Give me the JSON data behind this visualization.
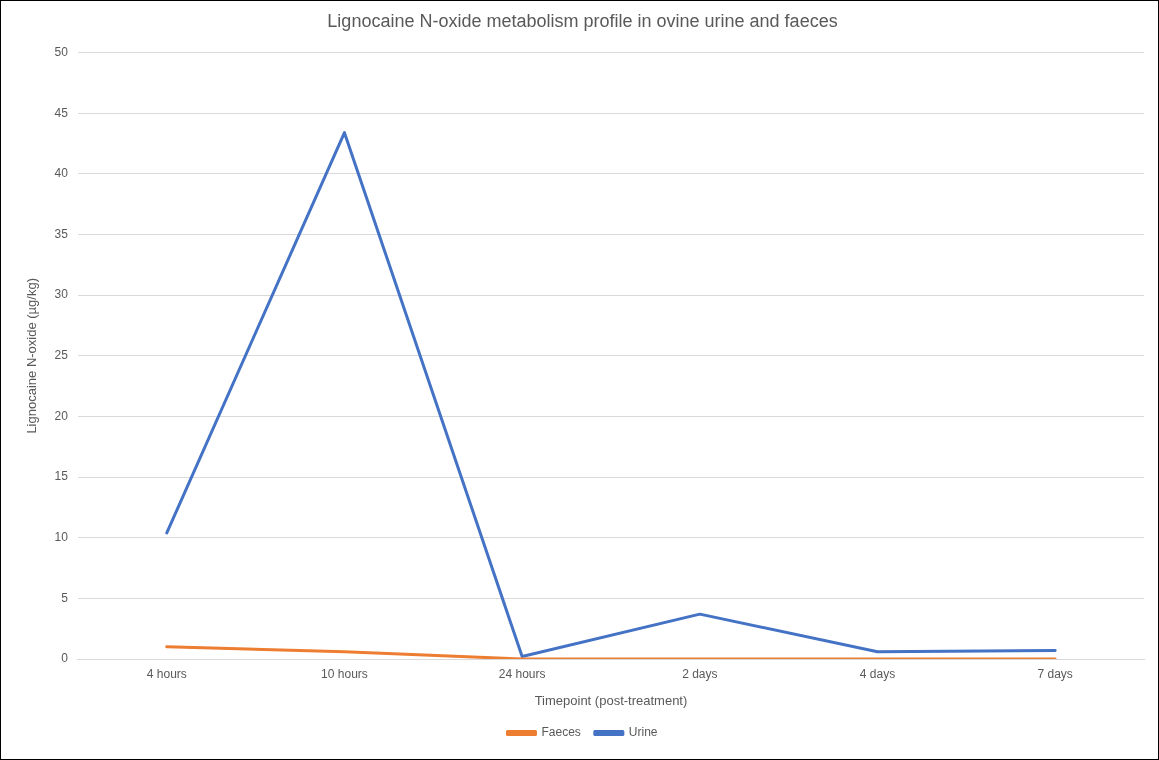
{
  "chart_data": {
    "type": "line",
    "title": "Lignocaine N-oxide metabolism profile in ovine urine and faeces",
    "xlabel": "Timepoint (post-treatment)",
    "ylabel": "Lignocaine N-oxide (µg/kg)",
    "categories": [
      "4 hours",
      "10 hours",
      "24 hours",
      "2 days",
      "4 days",
      "7 days"
    ],
    "series": [
      {
        "name": "Faeces",
        "color": "#ed7d31",
        "values": [
          1.0,
          0.6,
          0.0,
          0.0,
          0.0,
          0.0
        ]
      },
      {
        "name": "Urine",
        "color": "#4472c4",
        "values": [
          10.4,
          43.4,
          0.2,
          3.7,
          0.6,
          0.7
        ]
      }
    ],
    "ylim": [
      0,
      50
    ],
    "yticks": [
      0,
      5,
      10,
      15,
      20,
      25,
      30,
      35,
      40,
      45,
      50
    ],
    "grid": "y",
    "legend": "bottom",
    "marker": "none",
    "line_style": "solid"
  }
}
